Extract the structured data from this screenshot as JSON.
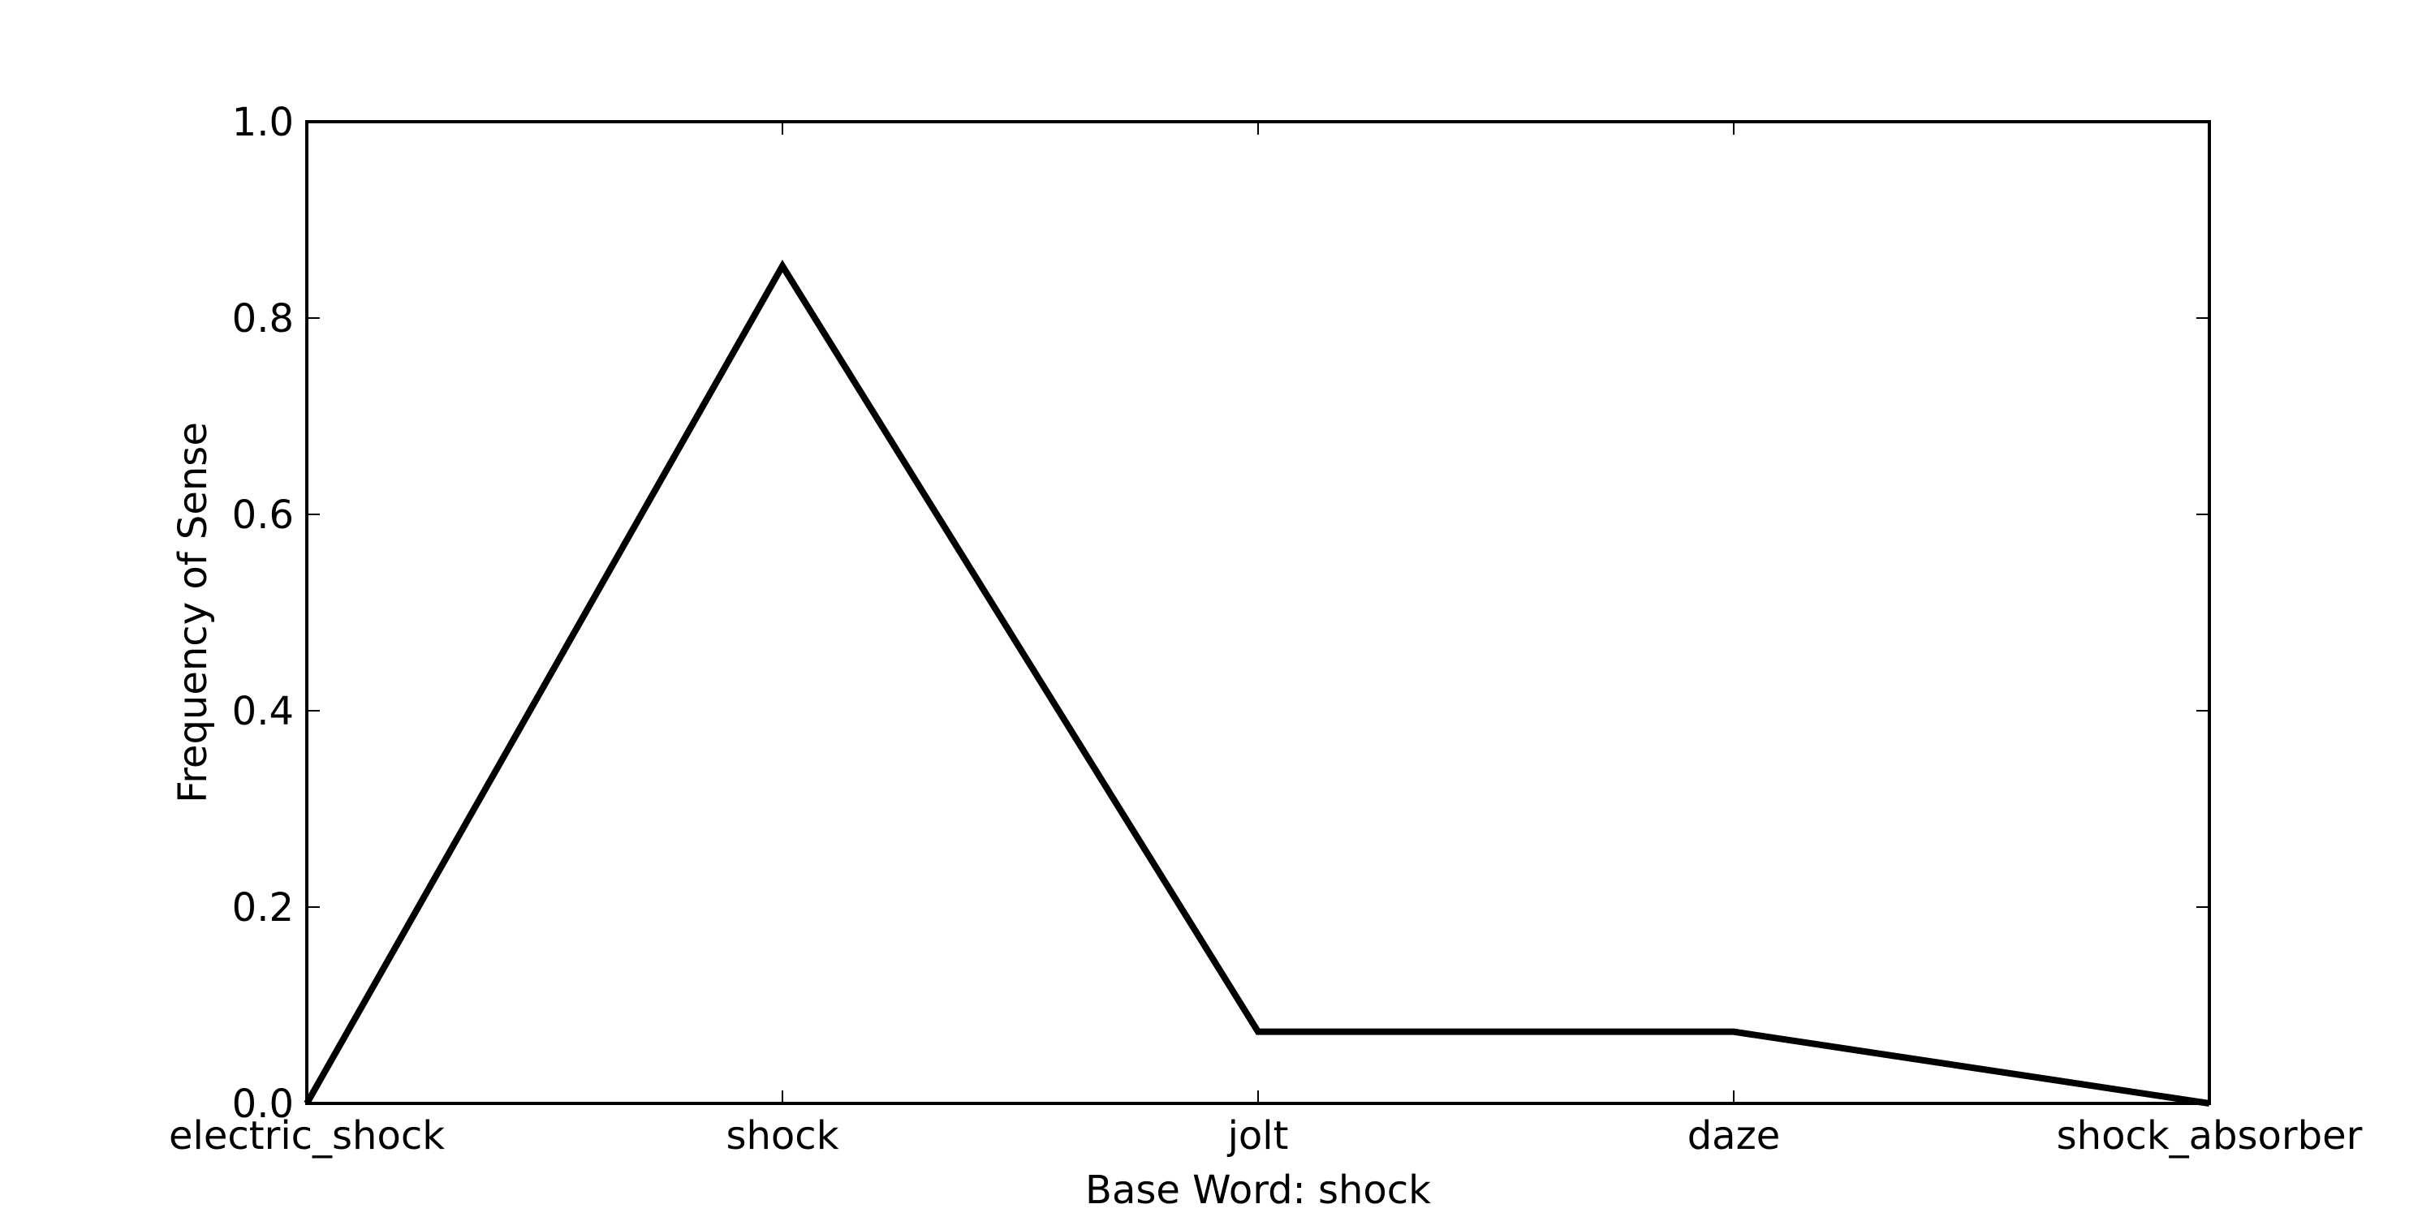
{
  "chart_data": {
    "type": "line",
    "categories": [
      "electric_shock",
      "shock",
      "jolt",
      "daze",
      "shock_absorber"
    ],
    "series": [
      {
        "values": [
          0.0,
          0.853,
          0.073,
          0.073,
          0.0
        ],
        "color": "#000000"
      }
    ],
    "xlabel": "Base Word: shock",
    "ylabel": "Frequency of Sense",
    "ylim": [
      0.0,
      1.0
    ],
    "yticks": [
      "0.0",
      "0.2",
      "0.4",
      "0.6",
      "0.8",
      "1.0"
    ],
    "grid": false,
    "legend": "none"
  }
}
